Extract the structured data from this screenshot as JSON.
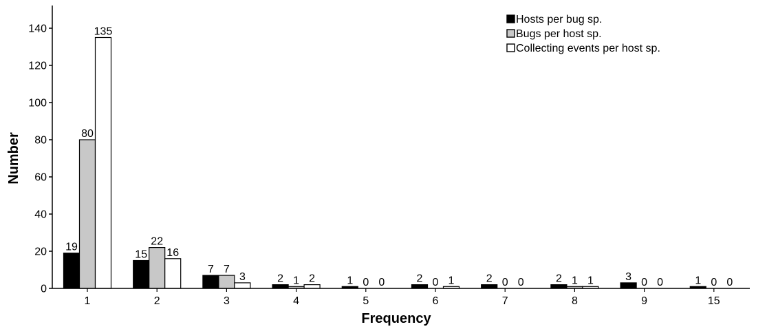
{
  "chart_data": {
    "type": "bar",
    "xlabel": "Frequency",
    "ylabel": "Number",
    "ylim": [
      0,
      150
    ],
    "yticks": [
      0,
      20,
      40,
      60,
      80,
      100,
      120,
      140
    ],
    "grid": false,
    "legend_position": "top-right",
    "categories": [
      "1",
      "2",
      "3",
      "4",
      "5",
      "6",
      "7",
      "8",
      "9",
      "15"
    ],
    "series": [
      {
        "name": "Hosts per bug sp.",
        "color": "#000000",
        "values": [
          19,
          15,
          7,
          2,
          1,
          2,
          2,
          2,
          3,
          1
        ]
      },
      {
        "name": "Bugs per host sp.",
        "color": "#c8c8c8",
        "values": [
          80,
          22,
          7,
          1,
          0,
          0,
          0,
          1,
          0,
          0
        ]
      },
      {
        "name": "Collecting events per host sp.",
        "color": "#ffffff",
        "values": [
          135,
          16,
          3,
          2,
          0,
          1,
          0,
          1,
          0,
          0
        ]
      }
    ]
  }
}
